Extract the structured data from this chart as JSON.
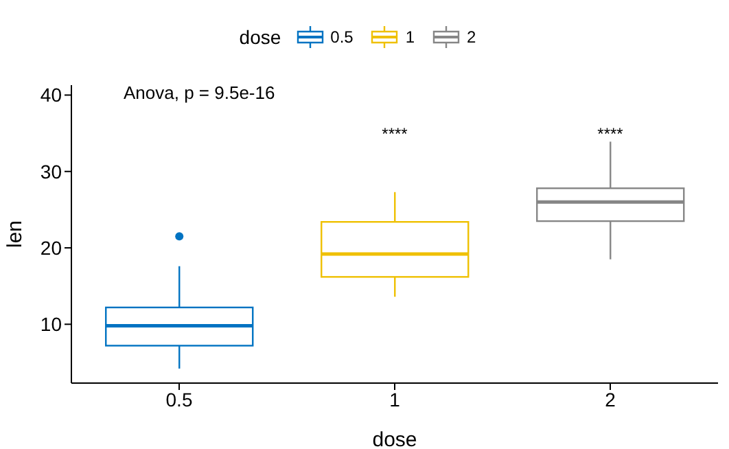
{
  "chart_data": {
    "type": "box",
    "xlabel": "dose",
    "ylabel": "len",
    "legend_title": "dose",
    "legend": "top",
    "grid": false,
    "categories": [
      "0.5",
      "1",
      "2"
    ],
    "series": [
      {
        "name": "0.5",
        "color": "#0073c2",
        "boxes": [
          {
            "low": 4.2,
            "q1": 7.2,
            "median": 9.8,
            "q3": 12.2,
            "high": 17.6,
            "outliers": [
              21.5
            ]
          },
          null,
          null
        ]
      },
      {
        "name": "1",
        "color": "#efc000",
        "boxes": [
          null,
          {
            "low": 13.6,
            "q1": 16.2,
            "median": 19.2,
            "q3": 23.4,
            "high": 27.3
          },
          null
        ]
      },
      {
        "name": "2",
        "color": "#868686",
        "boxes": [
          null,
          null,
          {
            "low": 18.5,
            "q1": 23.5,
            "median": 26,
            "q3": 27.8,
            "high": 33.9
          }
        ]
      }
    ],
    "ylim": [
      2.3,
      41.3
    ],
    "yticks": [
      10,
      20,
      30,
      40
    ],
    "annotations": [
      "Anova, p = 9.5e-16",
      "****",
      "****"
    ]
  }
}
